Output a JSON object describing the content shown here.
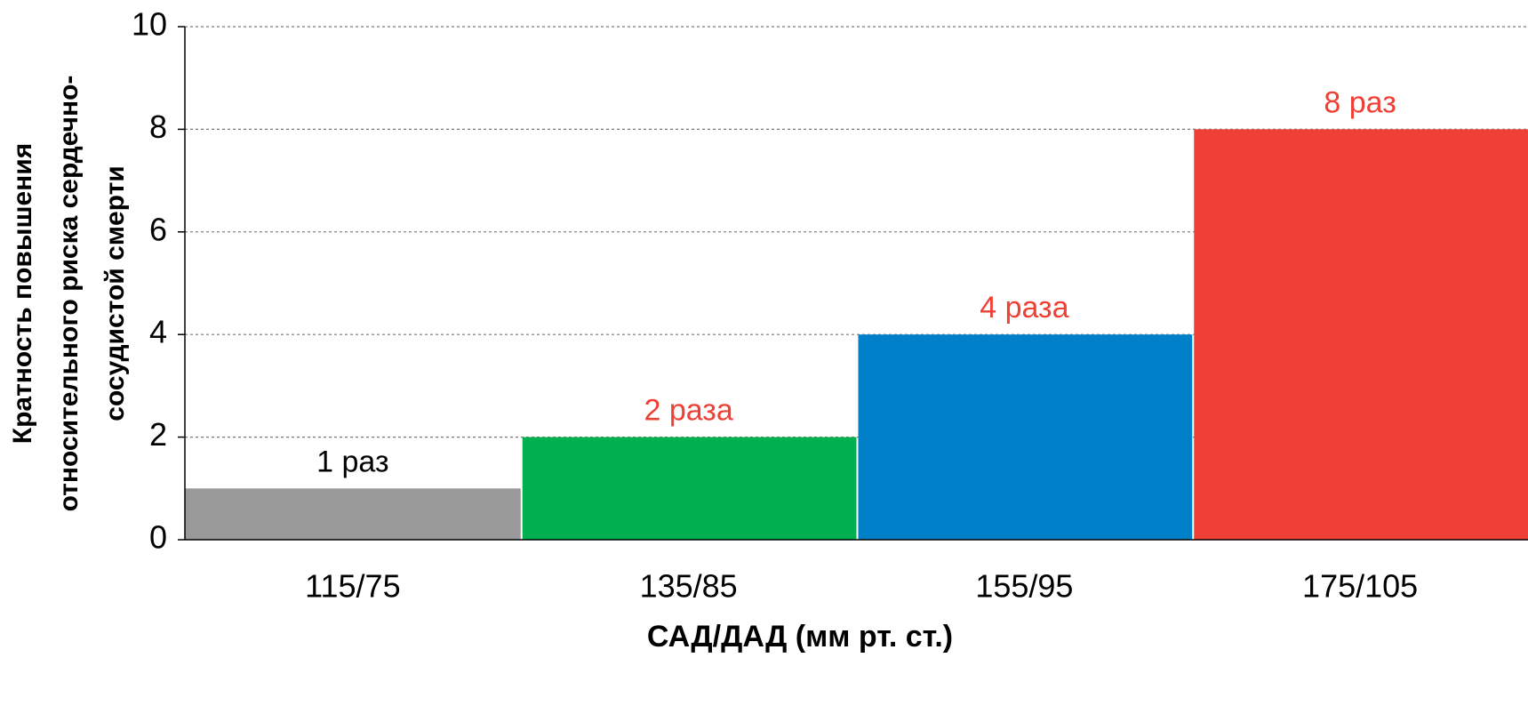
{
  "chart_data": {
    "type": "bar",
    "categories": [
      "115/75",
      "135/85",
      "155/95",
      "175/105"
    ],
    "values": [
      1,
      2,
      4,
      8
    ],
    "value_labels": [
      "1 раз",
      "2 раза",
      "4 раза",
      "8 раз"
    ],
    "colors": [
      "#999999",
      "#00b050",
      "#0080c8",
      "#ee4035"
    ],
    "value_label_colors": [
      "#000000",
      "#ee4035",
      "#ee4035",
      "#ee4035"
    ],
    "x_label": "САД/ДАД (мм рт. ст.)",
    "y_label": [
      "Кратность повышения",
      "относительного риска сердечно-",
      "сосудистой  смерти"
    ],
    "ylim": [
      0,
      10
    ],
    "yticks": [
      0,
      2,
      4,
      6,
      8,
      10
    ],
    "grid": true
  }
}
